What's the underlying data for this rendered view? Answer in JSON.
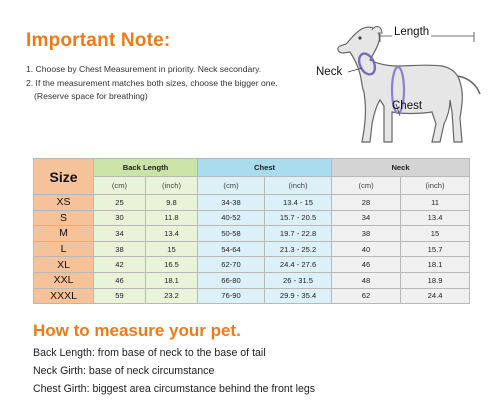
{
  "header": {
    "title": "Important Note:"
  },
  "notes": [
    "1. Choose by Chest Measurement in priority. Neck secondary.",
    "2. If the measurement matches both sizes, choose the bigger one.",
    "(Reserve space for breathing)"
  ],
  "diagram": {
    "length": "Length",
    "neck": "Neck",
    "chest": "Chest"
  },
  "table": {
    "size_header": "Size",
    "groups": [
      "Back Length",
      "Chest",
      "Neck"
    ],
    "units": [
      "(cm)",
      "(inch)",
      "(cm)",
      "(inch)",
      "(cm)",
      "(inch)"
    ],
    "rows": [
      [
        "XS",
        "25",
        "9.8",
        "34-38",
        "13.4 - 15",
        "28",
        "11"
      ],
      [
        "S",
        "30",
        "11.8",
        "40-52",
        "15.7 - 20.5",
        "34",
        "13.4"
      ],
      [
        "M",
        "34",
        "13.4",
        "50-58",
        "19.7 - 22.8",
        "38",
        "15"
      ],
      [
        "L",
        "38",
        "15",
        "54-64",
        "21.3 - 25.2",
        "40",
        "15.7"
      ],
      [
        "XL",
        "42",
        "16.5",
        "62-70",
        "24.4 - 27.6",
        "46",
        "18.1"
      ],
      [
        "XXL",
        "46",
        "18.1",
        "66-80",
        "26 - 31.5",
        "48",
        "18.9"
      ],
      [
        "XXXL",
        "59",
        "23.2",
        "76-90",
        "29.9 - 35.4",
        "62",
        "24.4"
      ]
    ]
  },
  "howto": {
    "title": "How to measure your pet.",
    "lines": [
      "Back Length: from base of neck to the base of tail",
      "Neck Girth: base of neck circumstance",
      "Chest Girth: biggest area circumstance behind the front legs"
    ]
  },
  "colors": {
    "accent": "#f07a1a",
    "size_column": "#f5c29a",
    "back_length_header": "#c9e4a6",
    "chest_header": "#a9dcec",
    "neck_header": "#d4d4d4"
  }
}
